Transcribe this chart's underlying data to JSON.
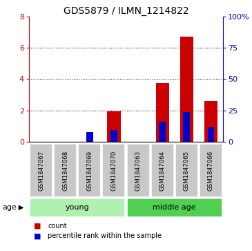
{
  "title": "GDS5879 / ILMN_1214822",
  "samples": [
    "GSM1847067",
    "GSM1847068",
    "GSM1847069",
    "GSM1847070",
    "GSM1847063",
    "GSM1847064",
    "GSM1847065",
    "GSM1847066"
  ],
  "count_values": [
    0.0,
    0.0,
    0.0,
    1.95,
    0.0,
    3.75,
    6.7,
    2.6
  ],
  "percentile_values": [
    0.0,
    0.0,
    8.0,
    9.5,
    0.0,
    16.0,
    24.0,
    11.5
  ],
  "ylim_left": [
    0,
    8
  ],
  "ylim_right": [
    0,
    100
  ],
  "yticks_left": [
    0,
    2,
    4,
    6,
    8
  ],
  "yticks_right": [
    0,
    25,
    50,
    75,
    100
  ],
  "ytick_labels_right": [
    "0",
    "25",
    "50",
    "75",
    "100%"
  ],
  "left_axis_color": "#cc0000",
  "right_axis_color": "#0000cc",
  "bar_color_red": "#cc0000",
  "bar_color_blue": "#0000cc",
  "sample_box_color": "#c8c8c8",
  "group_young_color": "#b0f0b0",
  "group_middle_color": "#50d050",
  "grid_linestyle": "dotted",
  "grid_yticks": [
    2,
    4,
    6
  ],
  "group_configs": [
    {
      "label": "young",
      "start": 0,
      "end": 4
    },
    {
      "label": "middle age",
      "start": 4,
      "end": 8
    }
  ]
}
